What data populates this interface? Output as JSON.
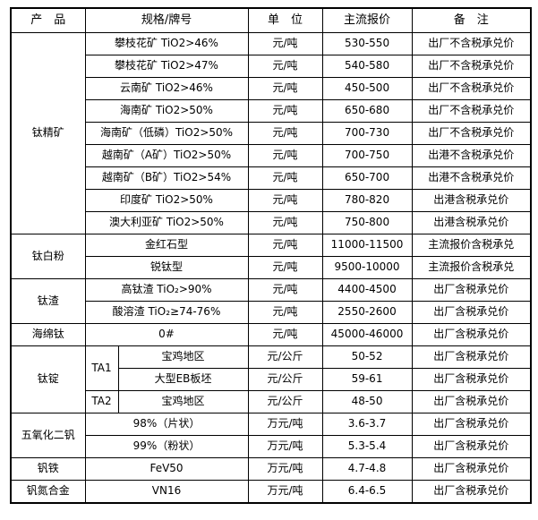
{
  "table": {
    "headers": [
      "产　品",
      "规格/牌号",
      "单　位",
      "主流报价",
      "备　注"
    ],
    "groups": [
      {
        "product": "钛精矿",
        "rows": [
          {
            "spec": "攀枝花矿 TiO2>46%",
            "unit": "元/吨",
            "price": "530-550",
            "note": "出厂不含税承兑价"
          },
          {
            "spec": "攀枝花矿 TiO2>47%",
            "unit": "元/吨",
            "price": "540-580",
            "note": "出厂不含税承兑价"
          },
          {
            "spec": "云南矿 TiO2>46%",
            "unit": "元/吨",
            "price": "450-500",
            "note": "出厂不含税承兑价"
          },
          {
            "spec": "海南矿 TiO2>50%",
            "unit": "元/吨",
            "price": "650-680",
            "note": "出厂不含税承兑价"
          },
          {
            "spec": "海南矿（低磷）TiO2>50%",
            "unit": "元/吨",
            "price": "700-730",
            "note": "出厂不含税承兑价"
          },
          {
            "spec": "越南矿（A矿）TiO2>50%",
            "unit": "元/吨",
            "price": "700-750",
            "note": "出港不含税承兑价"
          },
          {
            "spec": "越南矿（B矿）TiO2>54%",
            "unit": "元/吨",
            "price": "650-700",
            "note": "出港不含税承兑价"
          },
          {
            "spec": "印度矿 TiO2>50%",
            "unit": "元/吨",
            "price": "780-820",
            "note": "出港含税承兑价"
          },
          {
            "spec": "澳大利亚矿 TiO2>50%",
            "unit": "元/吨",
            "price": "750-800",
            "note": "出港含税承兑价"
          }
        ]
      },
      {
        "product": "钛白粉",
        "rows": [
          {
            "spec": "金红石型",
            "unit": "元/吨",
            "price": "11000-11500",
            "note": "主流报价含税承兑"
          },
          {
            "spec": "锐钛型",
            "unit": "元/吨",
            "price": "9500-10000",
            "note": "主流报价含税承兑"
          }
        ]
      },
      {
        "product": "钛渣",
        "rows": [
          {
            "spec": "高钛渣 TiO₂>90%",
            "unit": "元/吨",
            "price": "4400-4500",
            "note": "出厂含税承兑价"
          },
          {
            "spec": "酸溶渣 TiO₂≥74-76%",
            "unit": "元/吨",
            "price": "2550-2600",
            "note": "出厂含税承兑价"
          }
        ]
      },
      {
        "product": "海绵钛",
        "rows": [
          {
            "spec": "0#",
            "unit": "元/吨",
            "price": "45000-46000",
            "note": "出厂含税承兑价"
          }
        ]
      },
      {
        "product": "钛锭",
        "rows": [
          {
            "grade": "TA1",
            "spec": "宝鸡地区",
            "unit": "元/公斤",
            "price": "50-52",
            "note": "出厂含税承兑价"
          },
          {
            "spec": "大型EB板坯",
            "unit": "元/公斤",
            "price": "59-61",
            "note": "出厂含税承兑价"
          },
          {
            "grade": "TA2",
            "spec": "宝鸡地区",
            "unit": "元/公斤",
            "price": "48-50",
            "note": "出厂含税承兑价"
          }
        ]
      },
      {
        "product": "五氧化二钒",
        "rows": [
          {
            "spec": "98%（片状）",
            "unit": "万元/吨",
            "price": "3.6-3.7",
            "note": "出厂含税承兑价"
          },
          {
            "spec": "99%（粉状）",
            "unit": "万元/吨",
            "price": "5.3-5.4",
            "note": "出厂含税承兑价"
          }
        ]
      },
      {
        "product": "钒铁",
        "rows": [
          {
            "spec": "FeV50",
            "unit": "万元/吨",
            "price": "4.7-4.8",
            "note": "出厂含税承兑价"
          }
        ]
      },
      {
        "product": "钒氮合金",
        "rows": [
          {
            "spec": "VN16",
            "unit": "万元/吨",
            "price": "6.4-6.5",
            "note": "出厂含税承兑价"
          }
        ]
      }
    ]
  }
}
